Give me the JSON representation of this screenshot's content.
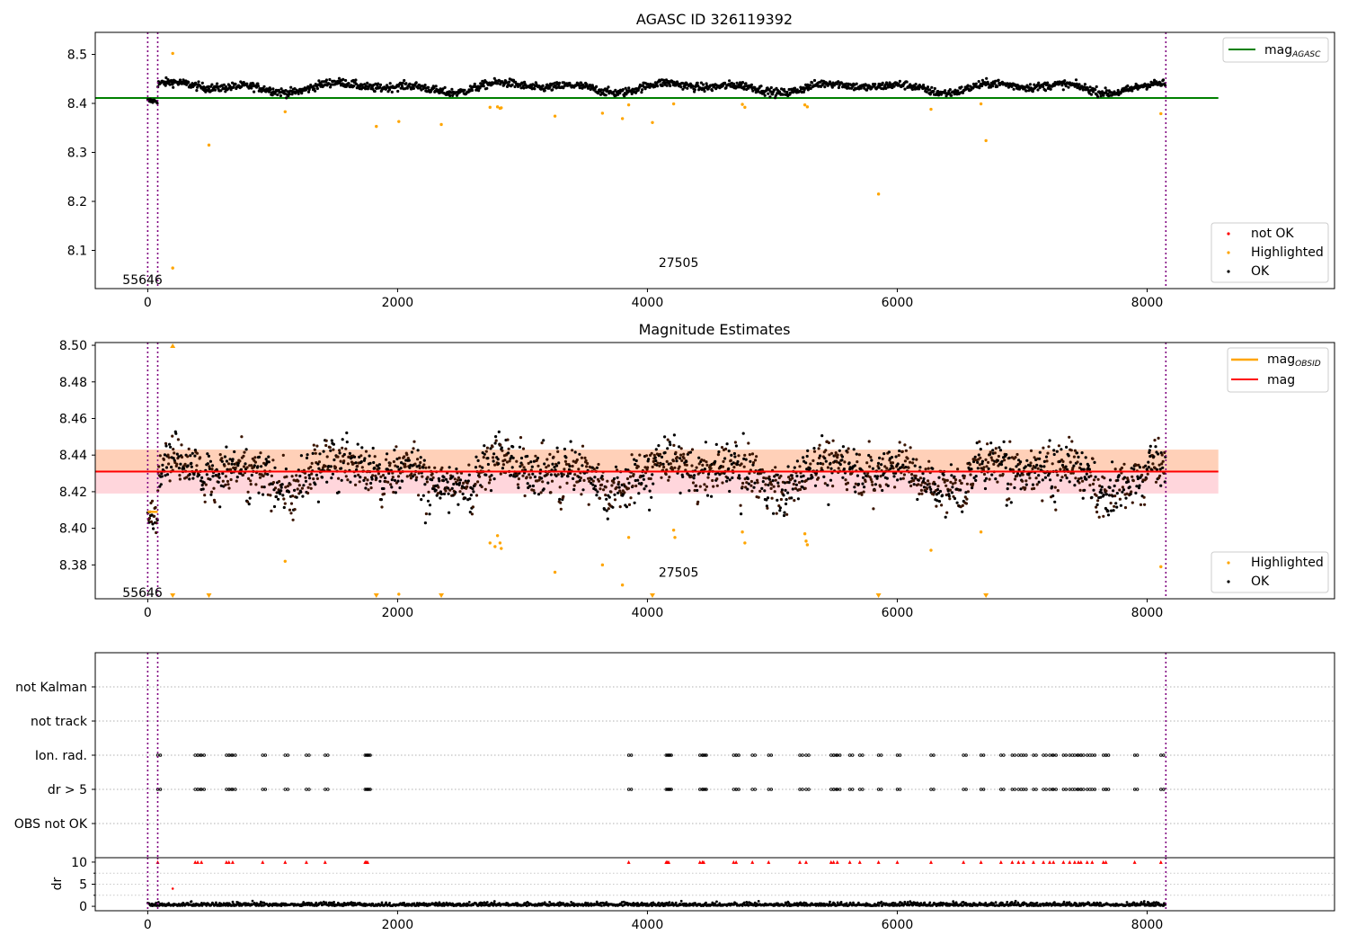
{
  "figure": {
    "vlines_x": [
      0,
      80,
      8150
    ],
    "axis_x": {
      "xlim": [
        -420,
        9500
      ],
      "ticks": [
        0,
        2000,
        4000,
        6000,
        8000
      ]
    }
  },
  "chart_data": [
    {
      "type": "scatter",
      "title": "AGASC ID 326119392",
      "ylim": [
        8.022,
        8.545
      ],
      "yticks": [
        "8.1",
        "8.2",
        "8.3",
        "8.4",
        "8.5"
      ],
      "ytick_values": [
        8.1,
        8.2,
        8.3,
        8.4,
        8.5
      ],
      "annotations": [
        {
          "text": "55646",
          "x": 30,
          "y": 8.04
        },
        {
          "text": "27505",
          "x": 4120,
          "y": 8.075
        }
      ],
      "reference_line": {
        "name": "mag_AGASC",
        "value": 8.411,
        "x_range": [
          -420,
          8570
        ],
        "color": "#008000"
      },
      "ok_points": {
        "x_range": [
          0,
          8150
        ],
        "mean": 8.433,
        "amplitude": 0.012,
        "noise": 0.006,
        "count": 1600
      },
      "highlighted": {
        "x": [
          200,
          490,
          1100,
          1830,
          2010,
          2350,
          2740,
          2800,
          2820,
          2830,
          3260,
          3640,
          3800,
          3850,
          4040,
          4210,
          4760,
          4780,
          5260,
          5280,
          5850,
          6270,
          6670,
          6710,
          8110,
          200
        ],
        "y": [
          8.502,
          8.315,
          8.383,
          8.353,
          8.363,
          8.357,
          8.392,
          8.393,
          8.39,
          8.391,
          8.374,
          8.38,
          8.369,
          8.397,
          8.361,
          8.399,
          8.398,
          8.392,
          8.397,
          8.393,
          8.215,
          8.388,
          8.399,
          8.324,
          8.379,
          8.064
        ]
      },
      "legend": {
        "entries": [
          "mag",
          "not OK",
          "Highlighted",
          "OK"
        ],
        "line_label": "mag",
        "line_sub": "AGASC",
        "placement_line": "top-right",
        "placement_points": "lower-right"
      },
      "colors": {
        "ok": "#000000",
        "highlighted": "#ffa500",
        "not_ok": "#ff0000"
      }
    },
    {
      "type": "scatter",
      "title": "Magnitude Estimates",
      "ylim": [
        8.3615,
        8.5015
      ],
      "yticks": [
        "8.38",
        "8.40",
        "8.42",
        "8.44",
        "8.46",
        "8.48",
        "8.50"
      ],
      "ytick_values": [
        8.38,
        8.4,
        8.42,
        8.44,
        8.46,
        8.48,
        8.5
      ],
      "annotations": [
        {
          "text": "55646",
          "x": 30,
          "y": 8.365
        },
        {
          "text": "27505",
          "x": 4120,
          "y": 8.376
        }
      ],
      "mean_line": {
        "name": "mag",
        "value": 8.431,
        "band": [
          8.419,
          8.443
        ],
        "x_range": [
          -420,
          8570
        ],
        "color": "#ff0000"
      },
      "obsid_segment": {
        "name": "mag_OBSID",
        "value": 8.409,
        "x_range": [
          0,
          80
        ],
        "color": "#ffa500"
      },
      "ok_points": {
        "x_range": [
          0,
          8150
        ],
        "mean": 8.431,
        "amplitude": 0.01,
        "noise": 0.009,
        "count": 2200
      },
      "highlighted": {
        "x": [
          1100,
          2010,
          2740,
          2780,
          2800,
          2820,
          2830,
          3260,
          3640,
          3800,
          3850,
          4210,
          4220,
          4760,
          4780,
          5260,
          5270,
          5280,
          6270,
          6670,
          8110
        ],
        "y": [
          8.382,
          8.364,
          8.392,
          8.39,
          8.396,
          8.392,
          8.389,
          8.376,
          8.38,
          8.369,
          8.395,
          8.399,
          8.395,
          8.398,
          8.392,
          8.397,
          8.393,
          8.391,
          8.388,
          8.398,
          8.379
        ]
      },
      "below_markers_x": [
        200,
        490,
        1830,
        2350,
        4040,
        5850,
        6710
      ],
      "above_markers_x": [
        200
      ],
      "legend": {
        "entries": [
          "mag",
          "mag",
          "Highlighted",
          "OK"
        ],
        "line1_label": "mag",
        "line1_sub": "OBSID",
        "line2_label": "mag",
        "placement_line": "top-right",
        "placement_points": "lower-right"
      },
      "colors": {
        "ok": "#000000",
        "highlighted": "#ffa500",
        "mean": "#ff0000",
        "band_upper": "#ffd0b8",
        "band_lower": "#ffd6dc"
      }
    },
    {
      "type": "scatter",
      "title": "",
      "categories": [
        "not Kalman",
        "not track",
        "Ion. rad.",
        "dr > 5",
        "OBS not OK"
      ],
      "flag_x": [
        80,
        380,
        400,
        430,
        630,
        650,
        680,
        920,
        1100,
        1270,
        1420,
        1740,
        1750,
        1760,
        3850,
        4150,
        4160,
        4170,
        4420,
        4440,
        4450,
        4690,
        4710,
        4840,
        4970,
        5220,
        5270,
        5470,
        5490,
        5520,
        5620,
        5700,
        5850,
        6000,
        6270,
        6530,
        6670,
        6830,
        6920,
        6970,
        7010,
        7090,
        7170,
        7220,
        7250,
        7330,
        7380,
        7420,
        7450,
        7470,
        7520,
        7560,
        7650,
        7670,
        7900,
        8110
      ],
      "flag_rows": [
        "Ion. rad.",
        "dr > 5"
      ],
      "dr": {
        "ylabel": "dr",
        "ylim": [
          -1,
          11
        ],
        "yticks": [
          "0",
          "5",
          "10"
        ],
        "ytick_values": [
          0,
          5,
          10
        ],
        "baseline_noise": 0.9,
        "outlier": {
          "x": 200,
          "y": 4
        }
      },
      "colors": {
        "flag": "#000000",
        "dr_outlier": "#ff0000",
        "dr": "#000000"
      }
    }
  ]
}
